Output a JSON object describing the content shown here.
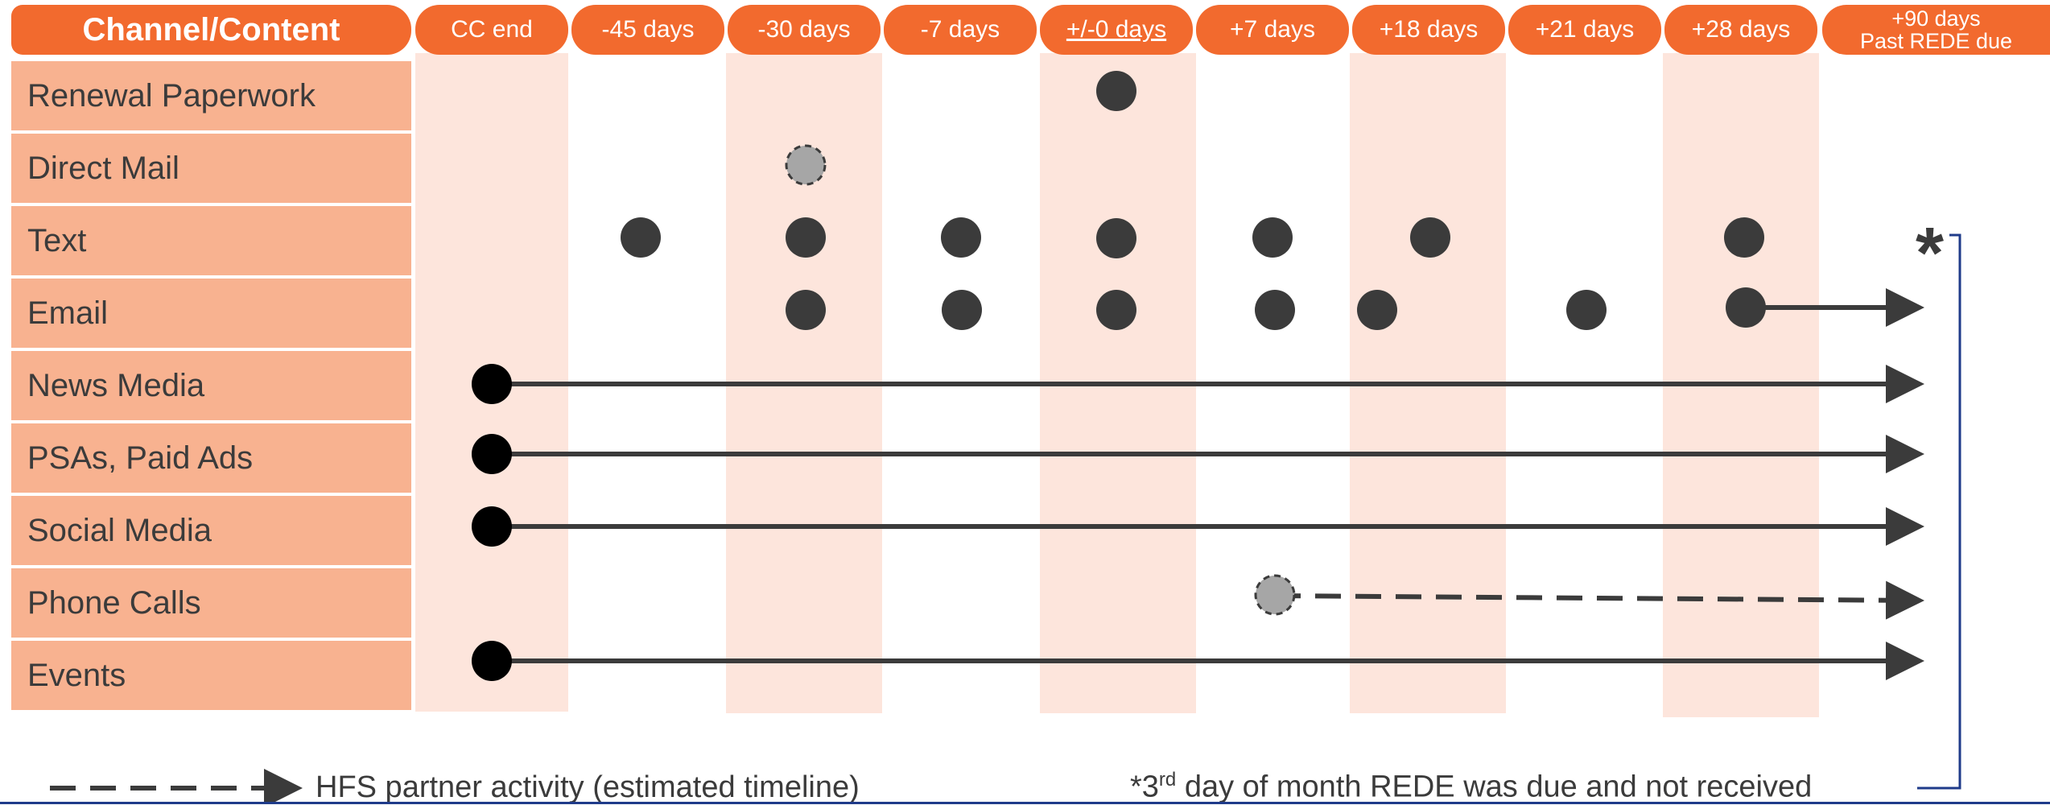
{
  "header": {
    "channel_title": "Channel/Content",
    "columns": [
      {
        "label": "CC end"
      },
      {
        "label": "-45 days"
      },
      {
        "label": "-30 days"
      },
      {
        "label": "-7 days"
      },
      {
        "label": "+/-0 days"
      },
      {
        "label": "+7 days"
      },
      {
        "label": "+18 days"
      },
      {
        "label": "+21 days"
      },
      {
        "label": "+28 days"
      },
      {
        "label_line1": "+90 days",
        "label_line2": "Past REDE due"
      }
    ]
  },
  "rows": [
    {
      "label": "Renewal Paperwork"
    },
    {
      "label": "Direct Mail"
    },
    {
      "label": "Text"
    },
    {
      "label": "Email"
    },
    {
      "label": "News Media"
    },
    {
      "label": "PSAs, Paid Ads"
    },
    {
      "label": "Social Media"
    },
    {
      "label": "Phone Calls"
    },
    {
      "label": "Events"
    }
  ],
  "asterisk": "*",
  "legend": {
    "dash_text": "HFS partner activity (estimated timeline)"
  },
  "footnote": {
    "prefix": "*3",
    "superscript": "rd",
    "text": " day of month REDE was due and not received"
  },
  "colors": {
    "header_orange": "#f26a2e",
    "row_label_bg": "#f8b290",
    "stripe": "#fde5dc",
    "marker_dark": "#3b3b3b",
    "marker_estimated": "#a6a6a6",
    "bracket_line": "#1f3b8a"
  }
}
